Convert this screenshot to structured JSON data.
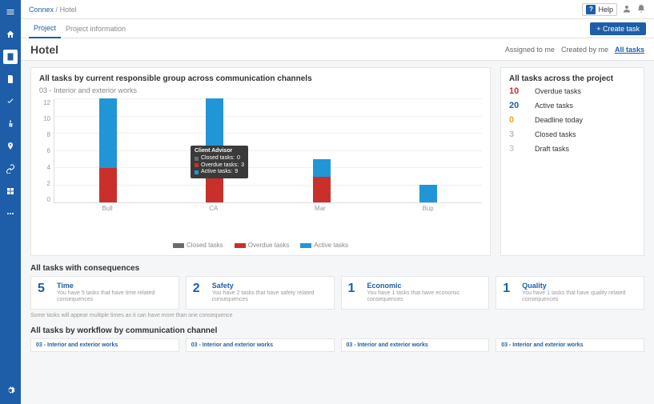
{
  "breadcrumb": {
    "root": "Connex",
    "sep": "/",
    "current": "Hotel"
  },
  "topbar": {
    "help_label": "Help"
  },
  "tabs": {
    "project": "Project",
    "info": "Project information",
    "create_task": "+  Create task"
  },
  "page": {
    "title": "Hotel"
  },
  "filters": {
    "assigned": "Assigned to me",
    "created": "Created by me",
    "all": "All tasks"
  },
  "chart": {
    "title": "All tasks by current responsible group across communication channels",
    "subtitle": "03 - Interior and exterior works",
    "type": "stacked-bar",
    "ylim": [
      0,
      12
    ],
    "ytick_step": 2,
    "y_ticks": [
      "12",
      "10",
      "8",
      "6",
      "4",
      "2",
      "0"
    ],
    "categories": [
      "Bull",
      "CA",
      "Mar",
      "Bup"
    ],
    "series": [
      {
        "name": "Closed tasks",
        "color": "#6c6c6c"
      },
      {
        "name": "Overdue tasks",
        "color": "#c9302c"
      },
      {
        "name": "Active tasks",
        "color": "#2196d6"
      }
    ],
    "data": [
      {
        "closed": 0,
        "overdue": 4,
        "active": 8
      },
      {
        "closed": 0,
        "overdue": 3,
        "active": 9
      },
      {
        "closed": 0,
        "overdue": 3,
        "active": 2
      },
      {
        "closed": 0,
        "overdue": 0,
        "active": 2
      }
    ],
    "tooltip": {
      "group": "Client Advisor",
      "rows": [
        {
          "label": "Closed tasks:",
          "value": "0",
          "color": "#6c6c6c"
        },
        {
          "label": "Overdue tasks:",
          "value": "3",
          "color": "#c9302c"
        },
        {
          "label": "Active tasks:",
          "value": "9",
          "color": "#2196d6"
        }
      ]
    }
  },
  "side_stats": {
    "title": "All tasks across the project",
    "rows": [
      {
        "num": "10",
        "label": "Overdue tasks",
        "color": "#c9302c"
      },
      {
        "num": "20",
        "label": "Active tasks",
        "color": "#1e5ea8"
      },
      {
        "num": "0",
        "label": "Deadline today",
        "color": "#e6a817"
      },
      {
        "num": "3",
        "label": "Closed tasks",
        "color": "#bbbbbb"
      },
      {
        "num": "3",
        "label": "Draft tasks",
        "color": "#cccccc"
      }
    ]
  },
  "consequences": {
    "title": "All tasks with consequences",
    "cards": [
      {
        "num": "5",
        "title": "Time",
        "desc": "You have 5 tasks that have time related consequences"
      },
      {
        "num": "2",
        "title": "Safety",
        "desc": "You have 2 tasks that have safety related consequences"
      },
      {
        "num": "1",
        "title": "Economic",
        "desc": "You have 1 tasks that have economic consequences"
      },
      {
        "num": "1",
        "title": "Quality",
        "desc": "You have 1 tasks that have quality related consequences"
      }
    ],
    "note": "Some tasks will appear multiple times as it can have more than one consequence"
  },
  "workflow": {
    "title": "All tasks by workflow by communication channel",
    "cells": [
      "03 - Interior and exterior works",
      "03 - Interior and exterior works",
      "03 - Interior and exterior works",
      "03 - Interior and exterior works"
    ]
  },
  "colors": {
    "brand": "#1e5ea8",
    "closed": "#6c6c6c",
    "overdue": "#c9302c",
    "active": "#2196d6"
  }
}
